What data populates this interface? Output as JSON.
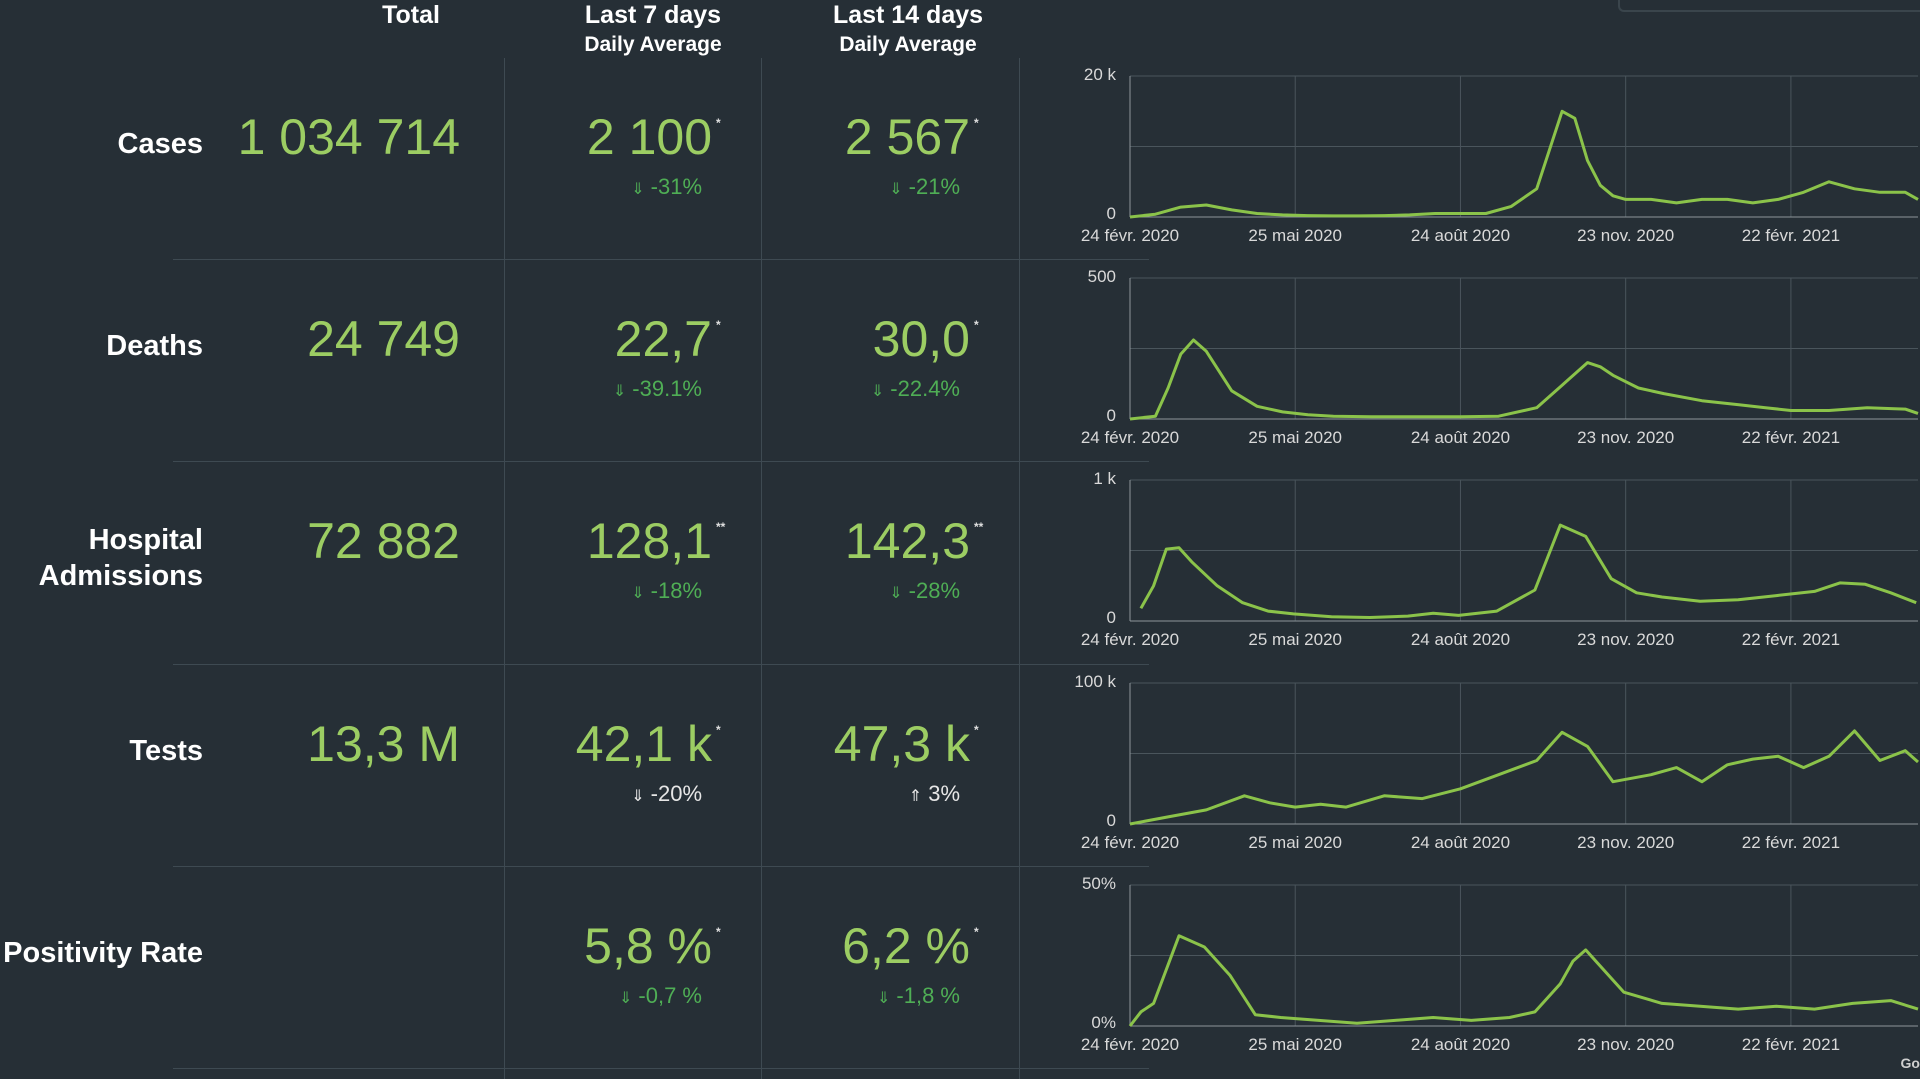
{
  "headers": {
    "total": "Total",
    "last7": "Last 7 days",
    "last7_sub": "Daily Average",
    "last14": "Last 14 days",
    "last14_sub": "Daily Average"
  },
  "rows": [
    {
      "label": "Cases",
      "total": "1 034 714",
      "avg7": "2 100",
      "avg7_mark": "*",
      "chg7": "-31%",
      "chg7_dir": "down",
      "chg7_color": "green",
      "avg14": "2 567",
      "avg14_mark": "*",
      "chg14": "-21%",
      "chg14_dir": "down",
      "chg14_color": "green"
    },
    {
      "label": "Deaths",
      "total": "24 749",
      "avg7": "22,7",
      "avg7_mark": "*",
      "chg7": "-39.1%",
      "chg7_dir": "down",
      "chg7_color": "green",
      "avg14": "30,0",
      "avg14_mark": "*",
      "chg14": "-22.4%",
      "chg14_dir": "down",
      "chg14_color": "green"
    },
    {
      "label": "Hospital Admissions",
      "total": "72 882",
      "avg7": "128,1",
      "avg7_mark": "**",
      "chg7": "-18%",
      "chg7_dir": "down",
      "chg7_color": "green",
      "avg14": "142,3",
      "avg14_mark": "**",
      "chg14": "-28%",
      "chg14_dir": "down",
      "chg14_color": "green"
    },
    {
      "label": "Tests",
      "total": "13,3 M",
      "avg7": "42,1 k",
      "avg7_mark": "*",
      "chg7": "-20%",
      "chg7_dir": "down",
      "chg7_color": "white",
      "avg14": "47,3 k",
      "avg14_mark": "*",
      "chg14": "3%",
      "chg14_dir": "up",
      "chg14_color": "white"
    },
    {
      "label": "Positivity Rate",
      "total": "",
      "avg7": "5,8 %",
      "avg7_mark": "*",
      "chg7": "-0,7 %",
      "chg7_dir": "down",
      "chg7_color": "green",
      "avg14": "6,2 %",
      "avg14_mark": "*",
      "chg14": "-1,8 %",
      "chg14_dir": "down",
      "chg14_color": "green"
    }
  ],
  "colors": {
    "background": "#262f36",
    "value_green": "#9ccd63",
    "change_green": "#4fae55",
    "series_line": "#8bc34a"
  },
  "icons": {
    "down": "arrow-down-icon",
    "up": "arrow-up-icon"
  },
  "corner_text": "Go",
  "chart_data": [
    {
      "type": "line",
      "title": "Cases",
      "x_ticks": [
        "24 févr. 2020",
        "25 mai 2020",
        "24 août 2020",
        "23 nov. 2020",
        "22 févr. 2021"
      ],
      "y_ticks": [
        "0",
        "20 k"
      ],
      "ylim": [
        0,
        20000
      ],
      "grid": true,
      "series": [
        {
          "x": [
            "2020-02-24",
            "2020-03-09",
            "2020-03-23",
            "2020-04-06",
            "2020-04-20",
            "2020-05-04",
            "2020-05-18",
            "2020-06-01",
            "2020-06-15",
            "2020-06-29",
            "2020-07-13",
            "2020-07-27",
            "2020-08-10",
            "2020-08-24",
            "2020-09-07",
            "2020-09-21",
            "2020-10-05",
            "2020-10-19",
            "2020-10-26",
            "2020-11-02",
            "2020-11-09",
            "2020-11-16",
            "2020-11-23",
            "2020-12-07",
            "2020-12-21",
            "2021-01-04",
            "2021-01-18",
            "2021-02-01",
            "2021-02-15",
            "2021-03-01",
            "2021-03-15",
            "2021-03-29",
            "2021-04-12",
            "2021-04-26",
            "2021-05-03"
          ],
          "y": [
            0,
            400,
            1400,
            1700,
            1000,
            500,
            300,
            200,
            150,
            150,
            200,
            300,
            500,
            500,
            500,
            1500,
            4000,
            15000,
            14000,
            8000,
            4500,
            3000,
            2500,
            2500,
            2000,
            2500,
            2500,
            2000,
            2500,
            3500,
            5000,
            4000,
            3500,
            3500,
            2500
          ]
        }
      ]
    },
    {
      "type": "line",
      "title": "Deaths",
      "x_ticks": [
        "24 févr. 2020",
        "25 mai 2020",
        "24 août 2020",
        "23 nov. 2020",
        "22 févr. 2021"
      ],
      "y_ticks": [
        "0",
        "500"
      ],
      "ylim": [
        0,
        500
      ],
      "grid": true,
      "series": [
        {
          "x": [
            "2020-02-24",
            "2020-03-09",
            "2020-03-16",
            "2020-03-23",
            "2020-03-30",
            "2020-04-06",
            "2020-04-13",
            "2020-04-20",
            "2020-05-04",
            "2020-05-18",
            "2020-06-01",
            "2020-06-15",
            "2020-07-06",
            "2020-08-03",
            "2020-08-24",
            "2020-09-14",
            "2020-10-05",
            "2020-10-19",
            "2020-11-02",
            "2020-11-09",
            "2020-11-16",
            "2020-11-30",
            "2020-12-14",
            "2021-01-04",
            "2021-01-25",
            "2021-02-08",
            "2021-02-22",
            "2021-03-15",
            "2021-04-05",
            "2021-04-26",
            "2021-05-03"
          ],
          "y": [
            0,
            10,
            110,
            230,
            280,
            240,
            170,
            100,
            45,
            25,
            15,
            10,
            8,
            8,
            8,
            10,
            40,
            120,
            200,
            185,
            155,
            110,
            90,
            65,
            50,
            40,
            30,
            30,
            40,
            35,
            20
          ]
        }
      ]
    },
    {
      "type": "line",
      "title": "Hospital Admissions",
      "x_ticks": [
        "24 févr. 2020",
        "25 mai 2020",
        "24 août 2020",
        "23 nov. 2020",
        "22 févr. 2021"
      ],
      "y_ticks": [
        "0",
        "1 k"
      ],
      "ylim": [
        0,
        1000
      ],
      "grid": true,
      "series": [
        {
          "x": [
            "2020-03-01",
            "2020-03-08",
            "2020-03-15",
            "2020-03-22",
            "2020-03-29",
            "2020-04-12",
            "2020-04-26",
            "2020-05-10",
            "2020-05-24",
            "2020-06-14",
            "2020-07-05",
            "2020-07-26",
            "2020-08-09",
            "2020-08-23",
            "2020-09-13",
            "2020-10-04",
            "2020-10-18",
            "2020-11-01",
            "2020-11-08",
            "2020-11-15",
            "2020-11-29",
            "2020-12-13",
            "2021-01-03",
            "2021-01-24",
            "2021-02-14",
            "2021-03-07",
            "2021-03-21",
            "2021-04-04",
            "2021-04-18",
            "2021-05-02"
          ],
          "y": [
            90,
            250,
            510,
            520,
            420,
            250,
            130,
            70,
            50,
            30,
            25,
            35,
            55,
            40,
            70,
            220,
            680,
            600,
            450,
            300,
            200,
            170,
            140,
            150,
            180,
            210,
            270,
            260,
            200,
            130
          ]
        }
      ]
    },
    {
      "type": "line",
      "title": "Tests",
      "x_ticks": [
        "24 févr. 2020",
        "25 mai 2020",
        "24 août 2020",
        "23 nov. 2020",
        "22 févr. 2021"
      ],
      "y_ticks": [
        "0",
        "100 k"
      ],
      "ylim": [
        0,
        100000
      ],
      "grid": true,
      "series": [
        {
          "x": [
            "2020-02-24",
            "2020-03-16",
            "2020-04-06",
            "2020-04-27",
            "2020-05-11",
            "2020-05-25",
            "2020-06-08",
            "2020-06-22",
            "2020-07-13",
            "2020-08-03",
            "2020-08-24",
            "2020-09-14",
            "2020-10-05",
            "2020-10-19",
            "2020-11-02",
            "2020-11-16",
            "2020-12-07",
            "2020-12-21",
            "2021-01-04",
            "2021-01-18",
            "2021-02-01",
            "2021-02-15",
            "2021-03-01",
            "2021-03-15",
            "2021-03-29",
            "2021-04-12",
            "2021-04-26",
            "2021-05-03"
          ],
          "y": [
            0,
            5000,
            10000,
            20000,
            15000,
            12000,
            14000,
            12000,
            20000,
            18000,
            25000,
            35000,
            45000,
            65000,
            55000,
            30000,
            35000,
            40000,
            30000,
            42000,
            46000,
            48000,
            40000,
            48000,
            66000,
            45000,
            52000,
            44000
          ]
        }
      ]
    },
    {
      "type": "line",
      "title": "Positivity Rate",
      "x_ticks": [
        "24 févr. 2020",
        "25 mai 2020",
        "24 août 2020",
        "23 nov. 2020",
        "22 févr. 2021"
      ],
      "y_ticks": [
        "0%",
        "50%"
      ],
      "ylim": [
        0,
        50
      ],
      "grid": true,
      "series": [
        {
          "x": [
            "2020-02-24",
            "2020-03-01",
            "2020-03-08",
            "2020-03-22",
            "2020-04-05",
            "2020-04-19",
            "2020-05-03",
            "2020-05-17",
            "2020-06-07",
            "2020-06-28",
            "2020-07-19",
            "2020-08-09",
            "2020-08-30",
            "2020-09-20",
            "2020-10-04",
            "2020-10-18",
            "2020-10-25",
            "2020-11-01",
            "2020-11-08",
            "2020-11-22",
            "2020-12-13",
            "2021-01-03",
            "2021-01-24",
            "2021-02-14",
            "2021-03-07",
            "2021-03-28",
            "2021-04-18",
            "2021-05-03"
          ],
          "y": [
            0,
            5,
            8,
            32,
            28,
            18,
            4,
            3,
            2,
            1,
            2,
            3,
            2,
            3,
            5,
            15,
            23,
            27,
            22,
            12,
            8,
            7,
            6,
            7,
            6,
            8,
            9,
            6
          ]
        }
      ]
    }
  ]
}
